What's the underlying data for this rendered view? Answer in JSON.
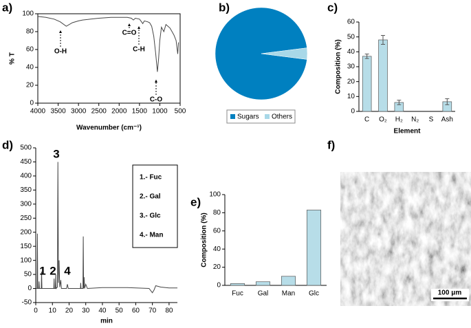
{
  "chart_data": [
    {
      "panel": "a)",
      "type": "line",
      "xlabel": "Wavenumber (cm⁻¹)",
      "ylabel": "% T",
      "x": [
        4000,
        3800,
        3600,
        3450,
        3300,
        3150,
        3000,
        2900,
        2700,
        2500,
        2200,
        2000,
        1800,
        1700,
        1650,
        1600,
        1500,
        1450,
        1420,
        1380,
        1300,
        1250,
        1200,
        1150,
        1100,
        1060,
        1030,
        1000,
        960,
        900,
        850,
        800,
        750,
        700,
        650,
        600,
        560,
        540
      ],
      "values": [
        97,
        96,
        94,
        91,
        86,
        90,
        92,
        93,
        94,
        95,
        96,
        96,
        96,
        95,
        93,
        95,
        94,
        91,
        89,
        92,
        91,
        90,
        86,
        75,
        55,
        35,
        50,
        70,
        85,
        80,
        88,
        86,
        84,
        80,
        76,
        70,
        55,
        68
      ],
      "color": "#444444",
      "xlim": [
        4000,
        500
      ],
      "xticks": [
        4000,
        3500,
        3000,
        2500,
        2000,
        1500,
        1000,
        500
      ],
      "ylim": [
        0,
        100
      ],
      "yticks": [
        0,
        20,
        40,
        60,
        80,
        100
      ],
      "annotations": [
        "O-H",
        "C=O",
        "C-H",
        "C-O"
      ]
    },
    {
      "panel": "b)",
      "type": "pie",
      "categories": [
        "Sugars",
        "Others"
      ],
      "values": [
        96,
        4
      ],
      "colors": [
        "#0080c0",
        "#a8d8e8"
      ]
    },
    {
      "panel": "c)",
      "type": "bar",
      "xlabel": "Element",
      "ylabel": "Composition (%)",
      "categories": [
        "C",
        "O₂",
        "H₂",
        "N₂",
        "S",
        "Ash"
      ],
      "values": [
        37,
        48,
        6,
        0,
        0,
        6.5
      ],
      "errors": [
        1.5,
        3,
        1.5,
        0,
        0,
        2
      ],
      "color": "#b7dde8",
      "ylim": [
        0,
        60
      ],
      "yticks": [
        0,
        10,
        20,
        30,
        40,
        50,
        60
      ]
    },
    {
      "panel": "d)",
      "type": "line",
      "xlabel": "min",
      "x": [
        0,
        0.8,
        1,
        1.2,
        1.8,
        2,
        2.2,
        3.3,
        3.5,
        3.7,
        10.8,
        11,
        11.2,
        11.8,
        12,
        12.2,
        13,
        13.3,
        13.6,
        14,
        14.4,
        15,
        15.4,
        18.5,
        19,
        19.5,
        26.8,
        27,
        27.2,
        28.3,
        28.5,
        28.7,
        29,
        29.3,
        30,
        31,
        40,
        55,
        68,
        70,
        71,
        72,
        75,
        80,
        85
      ],
      "values": [
        0,
        0,
        195,
        0,
        0,
        25,
        0,
        0,
        60,
        0,
        0,
        35,
        0,
        0,
        50,
        0,
        5,
        450,
        20,
        100,
        5,
        30,
        0,
        0,
        15,
        0,
        0,
        20,
        0,
        0,
        185,
        0,
        40,
        0,
        15,
        0,
        3,
        3,
        0,
        -15,
        -5,
        10,
        5,
        2,
        2
      ],
      "color": "#444444",
      "xlim": [
        0,
        85
      ],
      "xticks": [
        0,
        10,
        20,
        30,
        40,
        50,
        60,
        70,
        80
      ],
      "ylim": [
        -50,
        500
      ],
      "yticks": [
        -50,
        0,
        50,
        100,
        150,
        200,
        250,
        300,
        350,
        400,
        450,
        500
      ],
      "peaks": [
        "1",
        "2",
        "3",
        "4"
      ],
      "legend": [
        "1.- Fuc",
        "2.- Gal",
        "3.- Glc",
        "4.- Man"
      ]
    },
    {
      "panel": "e)",
      "type": "bar",
      "ylabel": "Composition (%)",
      "categories": [
        "Fuc",
        "Gal",
        "Man",
        "Glc"
      ],
      "values": [
        2,
        4,
        10,
        83
      ],
      "color": "#b7dde8",
      "ylim": [
        0,
        100
      ],
      "yticks": [
        0,
        20,
        40,
        60,
        80,
        100
      ]
    },
    {
      "panel": "f)",
      "type": "image",
      "scale_bar": "100 μm"
    }
  ]
}
